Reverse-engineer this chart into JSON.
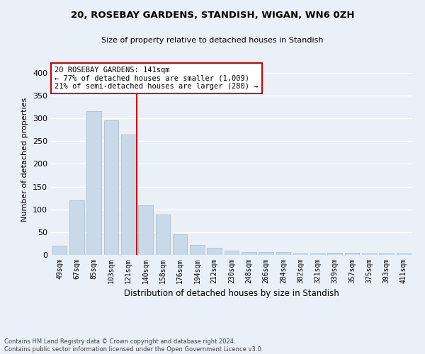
{
  "title1": "20, ROSEBAY GARDENS, STANDISH, WIGAN, WN6 0ZH",
  "title2": "Size of property relative to detached houses in Standish",
  "xlabel": "Distribution of detached houses by size in Standish",
  "ylabel": "Number of detached properties",
  "categories": [
    "49sqm",
    "67sqm",
    "85sqm",
    "103sqm",
    "121sqm",
    "140sqm",
    "158sqm",
    "176sqm",
    "194sqm",
    "212sqm",
    "230sqm",
    "248sqm",
    "266sqm",
    "284sqm",
    "302sqm",
    "321sqm",
    "339sqm",
    "357sqm",
    "375sqm",
    "393sqm",
    "411sqm"
  ],
  "values": [
    20,
    120,
    315,
    295,
    265,
    109,
    88,
    45,
    22,
    15,
    10,
    7,
    7,
    7,
    3,
    3,
    4,
    4,
    3,
    3,
    3
  ],
  "bar_color": "#c9d9e8",
  "bar_edge_color": "#a0b8cc",
  "line_x_index": 5,
  "line_color": "#cc0000",
  "annotation_text": "20 ROSEBAY GARDENS: 141sqm\n← 77% of detached houses are smaller (1,009)\n21% of semi-detached houses are larger (280) →",
  "annotation_box_color": "#ffffff",
  "annotation_box_edge": "#cc0000",
  "footer": "Contains HM Land Registry data © Crown copyright and database right 2024.\nContains public sector information licensed under the Open Government Licence v3.0.",
  "ylim": [
    0,
    420
  ],
  "yticks": [
    0,
    50,
    100,
    150,
    200,
    250,
    300,
    350,
    400
  ],
  "bg_color": "#eaf0f8",
  "fig_bg_color": "#eaf0f8",
  "grid_color": "#ffffff"
}
